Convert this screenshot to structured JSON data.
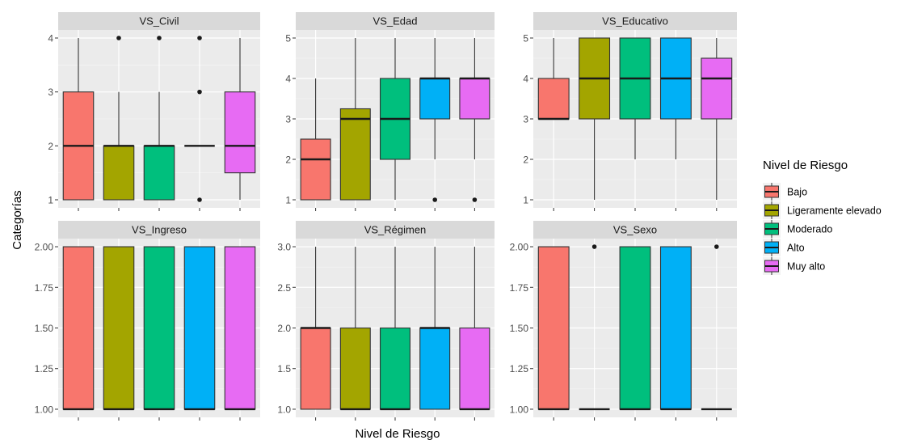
{
  "chart_data": {
    "type": "boxplot",
    "xlabel": "Nivel de Riesgo",
    "ylabel": "Categorías",
    "legend": {
      "title": "Nivel de Riesgo",
      "position": "right",
      "entries": [
        {
          "name": "Bajo",
          "color": "#F8766D"
        },
        {
          "name": "Ligeramente elevado",
          "color": "#A3A500"
        },
        {
          "name": "Moderado",
          "color": "#00BF7D"
        },
        {
          "name": "Alto",
          "color": "#00B0F6"
        },
        {
          "name": "Muy alto",
          "color": "#E76BF3"
        }
      ]
    },
    "categories": [
      "Bajo",
      "Ligeramente elevado",
      "Moderado",
      "Alto",
      "Muy alto"
    ],
    "grid": true,
    "panels": [
      {
        "strip": "VS_Civil",
        "ylim": [
          0.85,
          4.15
        ],
        "yticks": [
          1,
          2,
          3,
          4
        ],
        "yticklabels": [
          "1",
          "2",
          "3",
          "4"
        ],
        "boxes": [
          {
            "lower": 1,
            "q1": 1,
            "median": 2,
            "q3": 3,
            "upper": 4,
            "outliers": []
          },
          {
            "lower": 1,
            "q1": 1,
            "median": 2,
            "q3": 2,
            "upper": 3,
            "outliers": [
              4
            ]
          },
          {
            "lower": 1,
            "q1": 1,
            "median": 2,
            "q3": 2,
            "upper": 3,
            "outliers": [
              4
            ]
          },
          {
            "lower": 2,
            "q1": 2,
            "median": 2,
            "q3": 2,
            "upper": 2,
            "outliers": [
              1,
              3,
              4
            ]
          },
          {
            "lower": 1,
            "q1": 1.5,
            "median": 2,
            "q3": 3,
            "upper": 4,
            "outliers": []
          }
        ]
      },
      {
        "strip": "VS_Edad",
        "ylim": [
          0.8,
          5.2
        ],
        "yticks": [
          1,
          2,
          3,
          4,
          5
        ],
        "yticklabels": [
          "1",
          "2",
          "3",
          "4",
          "5"
        ],
        "boxes": [
          {
            "lower": 1,
            "q1": 1,
            "median": 2,
            "q3": 2.5,
            "upper": 4,
            "outliers": []
          },
          {
            "lower": 1,
            "q1": 1,
            "median": 3,
            "q3": 3.25,
            "upper": 5,
            "outliers": []
          },
          {
            "lower": 1,
            "q1": 2,
            "median": 3,
            "q3": 4,
            "upper": 5,
            "outliers": []
          },
          {
            "lower": 2,
            "q1": 3,
            "median": 4,
            "q3": 4,
            "upper": 5,
            "outliers": [
              1
            ]
          },
          {
            "lower": 2,
            "q1": 3,
            "median": 4,
            "q3": 4,
            "upper": 5,
            "outliers": [
              1
            ]
          }
        ]
      },
      {
        "strip": "VS_Educativo",
        "ylim": [
          0.8,
          5.2
        ],
        "yticks": [
          1,
          2,
          3,
          4,
          5
        ],
        "yticklabels": [
          "1",
          "2",
          "3",
          "4",
          "5"
        ],
        "boxes": [
          {
            "lower": 3,
            "q1": 3,
            "median": 3,
            "q3": 4,
            "upper": 5,
            "outliers": []
          },
          {
            "lower": 1,
            "q1": 3,
            "median": 4,
            "q3": 5,
            "upper": 5,
            "outliers": []
          },
          {
            "lower": 2,
            "q1": 3,
            "median": 4,
            "q3": 5,
            "upper": 5,
            "outliers": []
          },
          {
            "lower": 2,
            "q1": 3,
            "median": 4,
            "q3": 5,
            "upper": 5,
            "outliers": []
          },
          {
            "lower": 1,
            "q1": 3,
            "median": 4,
            "q3": 4.5,
            "upper": 5,
            "outliers": []
          }
        ]
      },
      {
        "strip": "VS_Ingreso",
        "ylim": [
          0.95,
          2.05
        ],
        "yticks": [
          1,
          1.25,
          1.5,
          1.75,
          2
        ],
        "yticklabels": [
          "1.00",
          "1.25",
          "1.50",
          "1.75",
          "2.00"
        ],
        "boxes": [
          {
            "lower": 1,
            "q1": 1,
            "median": 1,
            "q3": 2,
            "upper": 2,
            "outliers": []
          },
          {
            "lower": 1,
            "q1": 1,
            "median": 1,
            "q3": 2,
            "upper": 2,
            "outliers": []
          },
          {
            "lower": 1,
            "q1": 1,
            "median": 1,
            "q3": 2,
            "upper": 2,
            "outliers": []
          },
          {
            "lower": 1,
            "q1": 1,
            "median": 1,
            "q3": 2,
            "upper": 2,
            "outliers": []
          },
          {
            "lower": 1,
            "q1": 1,
            "median": 1,
            "q3": 2,
            "upper": 2,
            "outliers": []
          }
        ]
      },
      {
        "strip": "VS_Régimen",
        "ylim": [
          0.9,
          3.1
        ],
        "yticks": [
          1,
          1.5,
          2,
          2.5,
          3
        ],
        "yticklabels": [
          "1.0",
          "1.5",
          "2.0",
          "2.5",
          "3.0"
        ],
        "boxes": [
          {
            "lower": 1,
            "q1": 1,
            "median": 2,
            "q3": 2,
            "upper": 3,
            "outliers": []
          },
          {
            "lower": 1,
            "q1": 1,
            "median": 1,
            "q3": 2,
            "upper": 3,
            "outliers": []
          },
          {
            "lower": 1,
            "q1": 1,
            "median": 1,
            "q3": 2,
            "upper": 3,
            "outliers": []
          },
          {
            "lower": 1,
            "q1": 1,
            "median": 2,
            "q3": 2,
            "upper": 3,
            "outliers": []
          },
          {
            "lower": 1,
            "q1": 1,
            "median": 1,
            "q3": 2,
            "upper": 3,
            "outliers": []
          }
        ]
      },
      {
        "strip": "VS_Sexo",
        "ylim": [
          0.95,
          2.05
        ],
        "yticks": [
          1,
          1.25,
          1.5,
          1.75,
          2
        ],
        "yticklabels": [
          "1.00",
          "1.25",
          "1.50",
          "1.75",
          "2.00"
        ],
        "boxes": [
          {
            "lower": 1,
            "q1": 1,
            "median": 1,
            "q3": 2,
            "upper": 2,
            "outliers": []
          },
          {
            "lower": 1,
            "q1": 1,
            "median": 1,
            "q3": 1,
            "upper": 1,
            "outliers": [
              2
            ]
          },
          {
            "lower": 1,
            "q1": 1,
            "median": 1,
            "q3": 2,
            "upper": 2,
            "outliers": []
          },
          {
            "lower": 1,
            "q1": 1,
            "median": 1,
            "q3": 2,
            "upper": 2,
            "outliers": []
          },
          {
            "lower": 1,
            "q1": 1,
            "median": 1,
            "q3": 1,
            "upper": 1,
            "outliers": [
              2
            ]
          }
        ]
      }
    ]
  }
}
